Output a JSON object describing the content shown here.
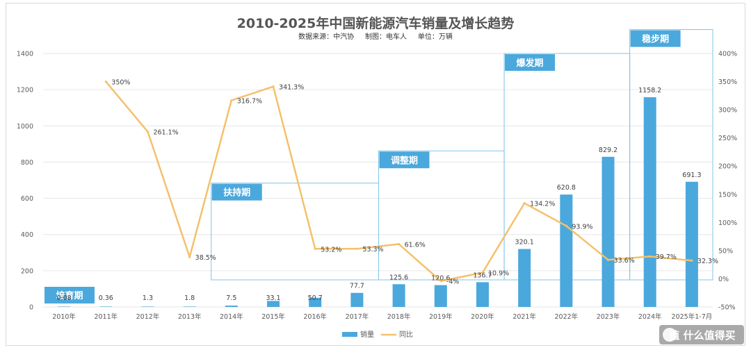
{
  "chart_data": {
    "type": "bar+line",
    "title": "2010-2025年中国新能源汽车销量及增长趋势",
    "subtitle": "数据来源：中汽协     制图：电车人     单位：万辆",
    "categories": [
      "2010年",
      "2011年",
      "2012年",
      "2013年",
      "2014年",
      "2015年",
      "2016年",
      "2017年",
      "2018年",
      "2019年",
      "2020年",
      "2021年",
      "2022年",
      "2023年",
      "2024年",
      "2025年1-7月"
    ],
    "series": [
      {
        "name": "销量",
        "type": "bar",
        "axis": "left",
        "color": "#4aa8dc",
        "values": [
          0.08,
          0.36,
          1.3,
          1.8,
          7.5,
          33.1,
          50.7,
          77.7,
          125.6,
          120.6,
          136.7,
          320.1,
          620.8,
          829.2,
          1158.2,
          691.3
        ],
        "labels": [
          "0.08",
          "0.36",
          "1.3",
          "1.8",
          "7.5",
          "33.1",
          "50.7",
          "77.7",
          "125.6",
          "120.6",
          "136.7",
          "320.1",
          "620.8",
          "829.2",
          "1158.2",
          "691.3"
        ]
      },
      {
        "name": "同比",
        "type": "line",
        "axis": "right",
        "color": "#f5c06b",
        "values": [
          null,
          350,
          261.1,
          38.5,
          316.7,
          341.3,
          53.2,
          53.3,
          61.6,
          -4,
          10.9,
          134.2,
          93.9,
          33.6,
          39.7,
          32.3
        ],
        "labels": [
          "",
          "350%",
          "261.1%",
          "38.5%",
          "316.7%",
          "341.3%",
          "53.2%",
          "53.3%",
          "61.6%",
          "-4%",
          "10.9%",
          "134.2%",
          "93.9%",
          "33.6%",
          "39.7%",
          "32.3%"
        ]
      }
    ],
    "y_left": {
      "min": 0,
      "max": 1400,
      "ticks": [
        "0",
        "200",
        "400",
        "600",
        "800",
        "1000",
        "1200",
        "1400"
      ]
    },
    "y_right": {
      "min": -50,
      "max": 400,
      "ticks": [
        "-50%",
        "0%",
        "50%",
        "100%",
        "150%",
        "200%",
        "250%",
        "300%",
        "350%",
        "400%"
      ]
    },
    "periods": [
      {
        "label": "培育期",
        "start": 0,
        "end": 3,
        "top_value": 115
      },
      {
        "label": "扶持期",
        "start": 4,
        "end": 7,
        "top_value": 684
      },
      {
        "label": "调整期",
        "start": 8,
        "end": 10,
        "top_value": 862
      },
      {
        "label": "爆发期",
        "start": 11,
        "end": 13,
        "top_value": 1400
      },
      {
        "label": "稳步期",
        "start": 14,
        "end": 15,
        "top_value": 1532
      }
    ],
    "legend": {
      "position": "bottom",
      "items": [
        "销量",
        "同比"
      ]
    },
    "grid": true
  },
  "watermark": "值 什么值得买",
  "colors": {
    "bar": "#4aa8dc",
    "line": "#f5c06b",
    "period_fill": "#4aa8dc",
    "period_border": "#7ec4e8",
    "grid": "#e6e6e6"
  }
}
